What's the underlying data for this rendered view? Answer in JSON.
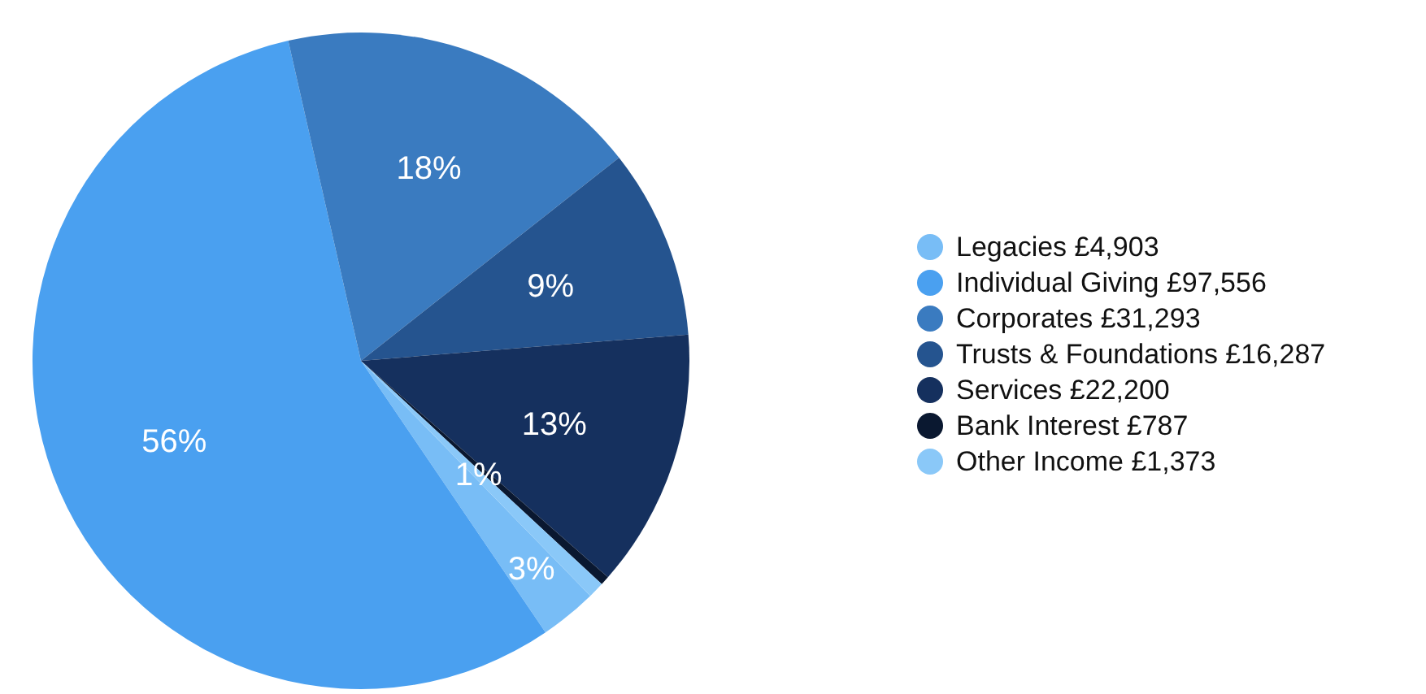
{
  "chart_data": {
    "type": "pie",
    "categories": [
      "Legacies £4,903",
      "Individual Giving £97,556",
      "Corporates £31,293",
      "Trusts & Foundations £16,287",
      "Services £22,200",
      "Bank Interest £787",
      "Other Income £1,373"
    ],
    "values": [
      2.81,
      55.94,
      17.94,
      9.34,
      12.73,
      0.45,
      0.79
    ],
    "colors": [
      "#78bdf6",
      "#4aa0f0",
      "#3a7bc0",
      "#25548f",
      "#15305e",
      "#0a1830",
      "#8ac8f8"
    ],
    "value_labels": [
      "3%",
      "56%",
      "18%",
      "9%",
      "13%",
      null,
      "1%"
    ],
    "legend": "right"
  }
}
